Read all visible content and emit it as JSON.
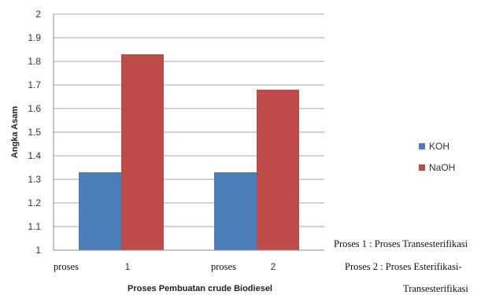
{
  "chart_data": {
    "type": "bar",
    "categories": [
      "1",
      "2"
    ],
    "category_prefix": "proses",
    "series": [
      {
        "name": "KOH",
        "values": [
          1.33,
          1.33
        ],
        "color": "#4a7ebb"
      },
      {
        "name": "NaOH",
        "values": [
          1.83,
          1.68
        ],
        "color": "#be4b48"
      }
    ],
    "xlabel": "Proses Pembuatan crude Biodiesel",
    "ylabel": "Angka Asam",
    "ylim": [
      1,
      2
    ],
    "yticks": [
      "1",
      "1.1",
      "1.2",
      "1.3",
      "1.4",
      "1.5",
      "1.6",
      "1.7",
      "1.8",
      "1.9",
      "2"
    ],
    "grid": true,
    "legend": "right"
  },
  "notes": {
    "line1": "Proses 1 : Proses Transesterifikasi",
    "line2": "Proses 2 : Proses Esterifikasi-",
    "line3": "Transesterifikasi"
  }
}
